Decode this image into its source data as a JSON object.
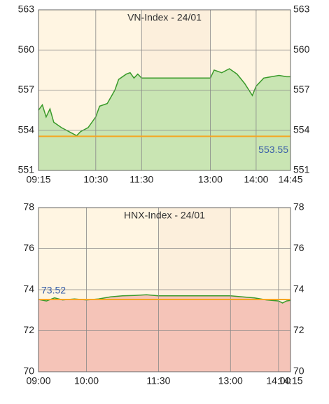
{
  "chart_data": [
    {
      "type": "line",
      "title": "VN-Index - 24/01",
      "x": [
        "09:15",
        "09:20",
        "09:25",
        "09:30",
        "09:35",
        "09:45",
        "09:55",
        "10:05",
        "10:10",
        "10:20",
        "10:30",
        "10:35",
        "10:45",
        "10:55",
        "11:00",
        "11:10",
        "11:15",
        "11:20",
        "11:25",
        "11:30",
        "13:00",
        "13:05",
        "13:15",
        "13:25",
        "13:35",
        "13:45",
        "13:55",
        "14:00",
        "14:10",
        "14:20",
        "14:30",
        "14:40",
        "14:45"
      ],
      "series": [
        {
          "color": "#3a9a2a",
          "fill": "#c9e5b3",
          "values": [
            555.5,
            555.9,
            555.0,
            555.6,
            554.6,
            554.2,
            553.9,
            553.6,
            553.9,
            554.2,
            555.0,
            555.8,
            556.0,
            557.0,
            557.8,
            558.2,
            558.3,
            557.9,
            558.2,
            557.9,
            557.9,
            558.5,
            558.3,
            558.6,
            558.2,
            557.5,
            556.6,
            557.3,
            557.9,
            558.0,
            558.1,
            558.0,
            558.0
          ]
        }
      ],
      "reference": {
        "value": 553.55,
        "color": "#f5a623"
      },
      "shaded_range": [
        "11:30",
        "13:00"
      ],
      "xlim": [
        "09:15",
        "14:45"
      ],
      "xticks": [
        "09:15",
        "10:30",
        "11:30",
        "13:00",
        "14:00",
        "14:45"
      ],
      "ylim": [
        551,
        563
      ],
      "yticks": [
        551,
        554,
        557,
        560,
        563
      ],
      "grid": true
    },
    {
      "type": "line",
      "title": "HNX-Index - 24/01",
      "x": [
        "09:00",
        "09:10",
        "09:20",
        "09:30",
        "09:45",
        "10:00",
        "10:15",
        "10:30",
        "10:45",
        "11:00",
        "11:15",
        "11:30",
        "13:00",
        "13:15",
        "13:30",
        "13:45",
        "14:00",
        "14:05",
        "14:10",
        "14:15"
      ],
      "series": [
        {
          "color": "#3a9a2a",
          "fill": "#f5c4b8",
          "values": [
            73.52,
            73.45,
            73.6,
            73.5,
            73.55,
            73.5,
            73.55,
            73.65,
            73.7,
            73.72,
            73.75,
            73.7,
            73.7,
            73.65,
            73.6,
            73.5,
            73.45,
            73.35,
            73.45,
            73.48
          ]
        }
      ],
      "reference": {
        "value": 73.52,
        "color": "#f5a623"
      },
      "shaded_range": [
        "11:30",
        "13:00"
      ],
      "xlim": [
        "09:00",
        "14:15"
      ],
      "xticks": [
        "09:00",
        "10:00",
        "11:30",
        "13:00",
        "14:00",
        "14:15"
      ],
      "ylim": [
        70,
        78
      ],
      "yticks": [
        70,
        72,
        74,
        76,
        78
      ],
      "grid": true
    }
  ]
}
